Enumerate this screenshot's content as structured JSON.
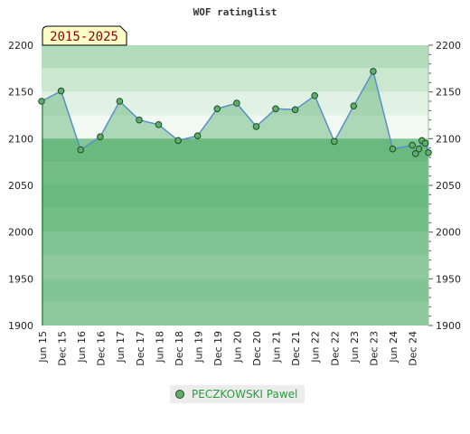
{
  "chart_data": {
    "type": "area",
    "title": "WOF ratinglist",
    "period_label": "2015-2025",
    "ylim": [
      1900,
      2200
    ],
    "y_ticks": [
      "1900",
      "1950",
      "2000",
      "2050",
      "2100",
      "2150",
      "2200"
    ],
    "x_tick_labels": [
      "Jun 15",
      "Dec 15",
      "Jun 16",
      "Dec 16",
      "Jun 17",
      "Dec 17",
      "Jun 18",
      "Dec 18",
      "Jun 19",
      "Dec 19",
      "Jun 20",
      "Dec 20",
      "Jun 21",
      "Dec 21",
      "Jun 22",
      "Dec 22",
      "Jun 23",
      "Dec 23",
      "Jun 24",
      "Dec 24"
    ],
    "grid": true,
    "legend_position": "bottom",
    "series": [
      {
        "name": "PECZKOWSKI Pawel",
        "color": "#5fae6b",
        "line_color": "#5a8fc8",
        "points": [
          {
            "x": "2015-06",
            "y": 2140
          },
          {
            "x": "2015-12",
            "y": 2151
          },
          {
            "x": "2016-06",
            "y": 2088
          },
          {
            "x": "2016-12",
            "y": 2102
          },
          {
            "x": "2017-06",
            "y": 2140
          },
          {
            "x": "2017-12",
            "y": 2120
          },
          {
            "x": "2018-06",
            "y": 2115
          },
          {
            "x": "2018-12",
            "y": 2098
          },
          {
            "x": "2019-06",
            "y": 2103
          },
          {
            "x": "2019-12",
            "y": 2132
          },
          {
            "x": "2020-06",
            "y": 2138
          },
          {
            "x": "2020-12",
            "y": 2113
          },
          {
            "x": "2021-06",
            "y": 2132
          },
          {
            "x": "2021-12",
            "y": 2131
          },
          {
            "x": "2022-06",
            "y": 2146
          },
          {
            "x": "2022-12",
            "y": 2097
          },
          {
            "x": "2023-06",
            "y": 2135
          },
          {
            "x": "2023-12",
            "y": 2172
          },
          {
            "x": "2024-06",
            "y": 2089
          },
          {
            "x": "2024-12",
            "y": 2093
          },
          {
            "x": "2025-01",
            "y": 2084
          },
          {
            "x": "2025-02",
            "y": 2089
          },
          {
            "x": "2025-03",
            "y": 2098
          },
          {
            "x": "2025-04",
            "y": 2095
          },
          {
            "x": "2025-05",
            "y": 2085
          }
        ]
      }
    ]
  }
}
